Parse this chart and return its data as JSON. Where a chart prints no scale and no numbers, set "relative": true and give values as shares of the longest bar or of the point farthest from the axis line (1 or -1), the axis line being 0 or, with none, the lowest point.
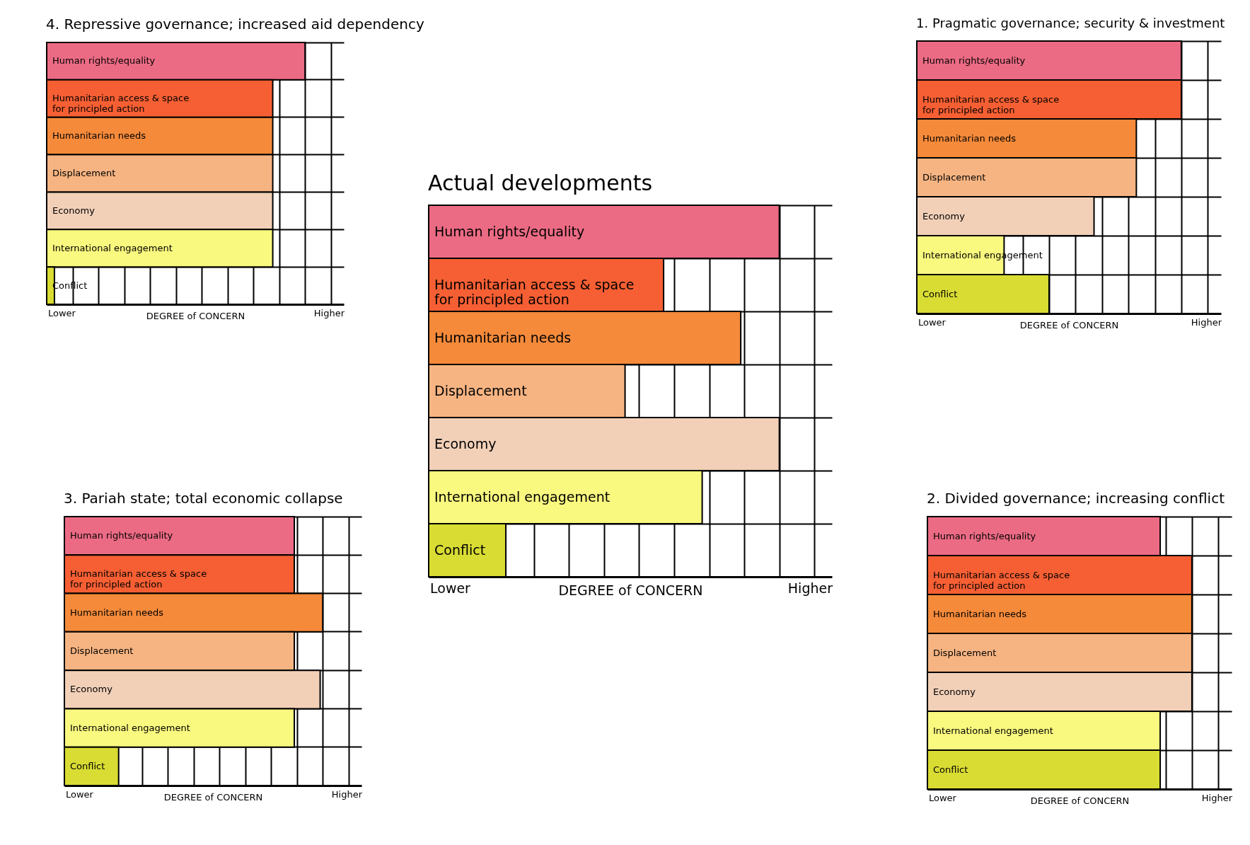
{
  "chart_data": [
    {
      "type": "bar",
      "orientation": "horizontal",
      "relative": true,
      "grid": true,
      "title": "4. Repressive governance; increased aid dependency",
      "xlabel": "DEGREE of CONCERN",
      "annotations": [
        "Lower",
        "Higher"
      ],
      "categories": [
        "Human rights/equality",
        "Humanitarian access & space\nfor principled action",
        "Humanitarian needs",
        "Displacement",
        "Economy",
        "International engagement",
        "Conflict"
      ],
      "values": [
        1,
        0.875,
        0.875,
        0.875,
        0.875,
        0.875,
        0.03
      ],
      "colors": [
        "#ec6b84",
        "#f65f33",
        "#f58a3a",
        "#f6b482",
        "#f2d0b8",
        "#f9f87f",
        "#d9dc33"
      ]
    },
    {
      "type": "bar",
      "orientation": "horizontal",
      "relative": true,
      "grid": true,
      "title": "1. Pragmatic governance; security & investment",
      "xlabel": "DEGREE of CONCERN",
      "annotations": [
        "Lower",
        "Higher"
      ],
      "categories": [
        "Human rights/equality",
        "Humanitarian access & space\nfor principled action",
        "Humanitarian needs",
        "Displacement",
        "Economy",
        "International engagement",
        "Conflict"
      ],
      "values": [
        1,
        1,
        0.83,
        0.83,
        0.67,
        0.33,
        0.5
      ],
      "colors": [
        "#ec6b84",
        "#f65f33",
        "#f58a3a",
        "#f6b482",
        "#f2d0b8",
        "#f9f87f",
        "#d9dc33"
      ]
    },
    {
      "type": "bar",
      "orientation": "horizontal",
      "relative": true,
      "grid": true,
      "title": "Actual developments",
      "xlabel": "DEGREE of CONCERN",
      "annotations": [
        "Lower",
        "Higher"
      ],
      "categories": [
        "Human rights/equality",
        "Humanitarian access & space\nfor principled action",
        "Humanitarian needs",
        "Displacement",
        "Economy",
        "International engagement",
        "Conflict"
      ],
      "values": [
        1,
        0.67,
        0.89,
        0.56,
        1,
        0.78,
        0.22
      ],
      "colors": [
        "#ec6b84",
        "#f65f33",
        "#f58a3a",
        "#f6b482",
        "#f2d0b8",
        "#f9f87f",
        "#d9dc33"
      ]
    },
    {
      "type": "bar",
      "orientation": "horizontal",
      "relative": true,
      "grid": true,
      "title": "3. Pariah state; total economic collapse",
      "xlabel": "DEGREE of CONCERN",
      "annotations": [
        "Lower",
        "Higher"
      ],
      "categories": [
        "Human rights/equality",
        "Humanitarian access & space\nfor principled action",
        "Humanitarian needs",
        "Displacement",
        "Economy",
        "International engagement",
        "Conflict"
      ],
      "values": [
        0.89,
        0.89,
        1,
        0.89,
        0.99,
        0.89,
        0.21
      ],
      "colors": [
        "#ec6b84",
        "#f65f33",
        "#f58a3a",
        "#f6b482",
        "#f2d0b8",
        "#f9f87f",
        "#d9dc33"
      ]
    },
    {
      "type": "bar",
      "orientation": "horizontal",
      "relative": true,
      "grid": true,
      "title": "2. Divided governance; increasing conflict",
      "xlabel": "DEGREE of CONCERN",
      "annotations": [
        "Lower",
        "Higher"
      ],
      "categories": [
        "Human rights/equality",
        "Humanitarian access & space\nfor principled action",
        "Humanitarian needs",
        "Displacement",
        "Economy",
        "International engagement",
        "Conflict"
      ],
      "values": [
        0.88,
        1,
        1,
        1,
        1,
        0.88,
        0.88
      ],
      "colors": [
        "#ec6b84",
        "#f65f33",
        "#f58a3a",
        "#f6b482",
        "#f2d0b8",
        "#f9f87f",
        "#d9dc33"
      ]
    }
  ]
}
